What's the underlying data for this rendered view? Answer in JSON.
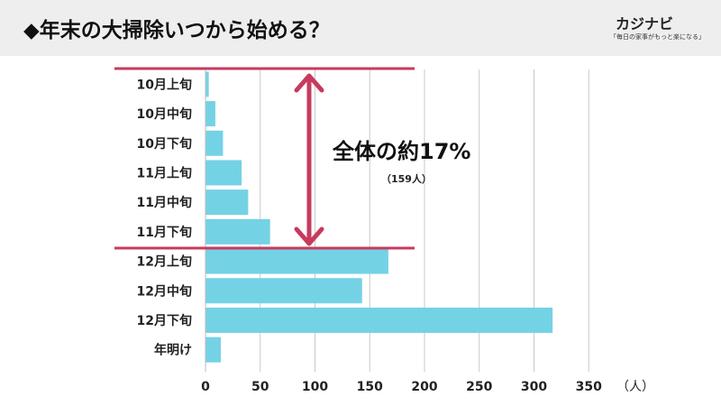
{
  "header": {
    "title": "◆年末の大掃除いつから始める？",
    "brand_name": "カジナビ",
    "brand_tagline": "「毎日の家事がもっと楽になる」"
  },
  "chart_data": {
    "type": "bar",
    "orientation": "horizontal",
    "title": "◆年末の大掃除いつから始める？",
    "categories": [
      "10月上旬",
      "10月中旬",
      "10月下旬",
      "11月上旬",
      "11月中旬",
      "11月下旬",
      "12月上旬",
      "12月中旬",
      "12月下旬",
      "年明け"
    ],
    "values": [
      3,
      9,
      16,
      33,
      39,
      59,
      167,
      143,
      317,
      14
    ],
    "xlabel": "（人）",
    "xlim": [
      0,
      350
    ],
    "xticks": [
      0,
      50,
      100,
      150,
      200,
      250,
      300,
      350
    ],
    "grid": true,
    "colors": {
      "bar": "#74d2e5",
      "annotation": "#c73a5e",
      "grid": "#c8c8c8"
    },
    "annotation": {
      "text": "全体の約17%",
      "subtext": "（159人）",
      "range": [
        "10月上旬",
        "11月下旬"
      ]
    }
  }
}
